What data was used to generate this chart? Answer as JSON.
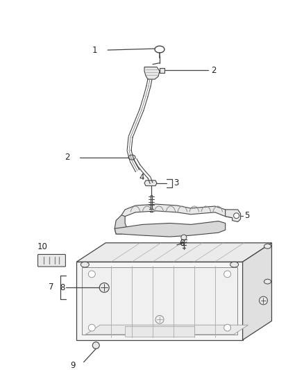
{
  "background_color": "#ffffff",
  "fig_width": 4.38,
  "fig_height": 5.33,
  "dpi": 100,
  "line_color": "#444444",
  "text_color": "#222222",
  "part_fill": "#e8e8e8",
  "part_fill2": "#d8d8d8",
  "part_stroke": "#555555"
}
